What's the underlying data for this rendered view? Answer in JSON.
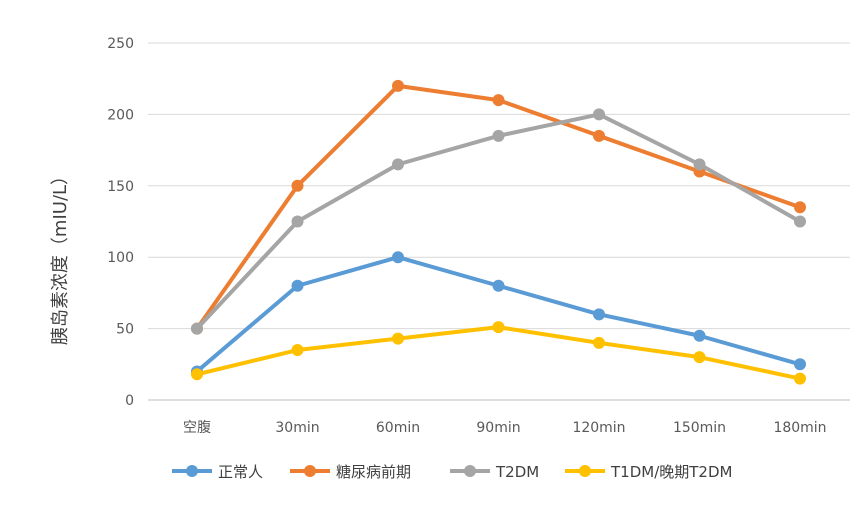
{
  "chart_data": {
    "type": "line",
    "title": "",
    "xlabel": "",
    "ylabel": "胰岛素浓度（mIU/L）",
    "ylim": [
      0,
      250
    ],
    "yticks": [
      0,
      50,
      100,
      150,
      200,
      250
    ],
    "grid": true,
    "legend_position": "bottom",
    "categories": [
      "空腹",
      "30min",
      "60min",
      "90min",
      "120min",
      "150min",
      "180min"
    ],
    "series": [
      {
        "name": "正常人",
        "color": "#5b9bd5",
        "values": [
          20,
          80,
          100,
          80,
          60,
          45,
          25
        ]
      },
      {
        "name": "糖尿病前期",
        "color": "#ed7d31",
        "values": [
          50,
          150,
          220,
          210,
          185,
          160,
          135
        ]
      },
      {
        "name": "T2DM",
        "color": "#a5a5a5",
        "values": [
          50,
          125,
          165,
          185,
          200,
          165,
          125
        ]
      },
      {
        "name": "T1DM/晚期T2DM",
        "color": "#ffc000",
        "values": [
          18,
          35,
          43,
          51,
          40,
          30,
          15
        ]
      }
    ]
  }
}
